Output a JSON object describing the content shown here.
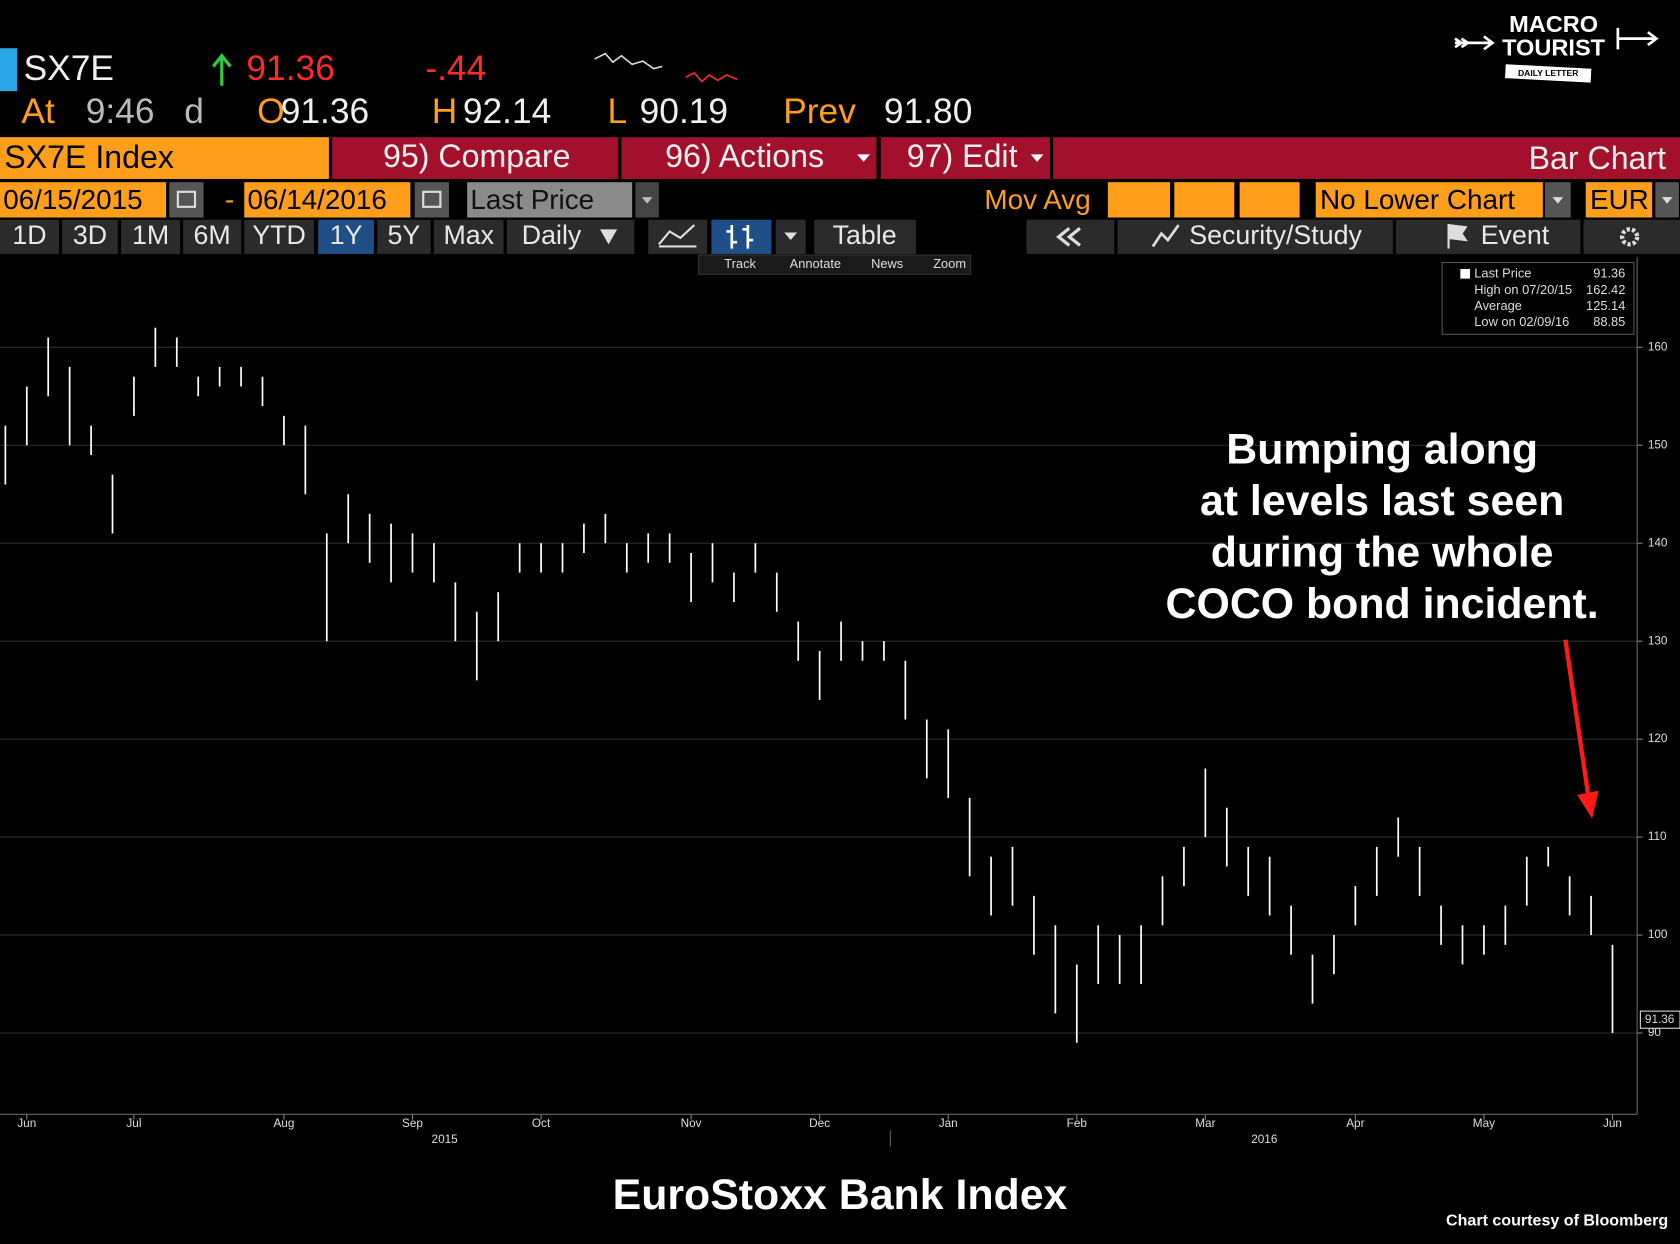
{
  "header": {
    "ticker": "SX7E",
    "last": "91.36",
    "change": "-.44",
    "at_label": "At",
    "time": "9:46",
    "time_flag": "d",
    "open_label": "O",
    "open": "91.36",
    "high_label": "H",
    "high": "92.14",
    "low_label": "L",
    "low": "90.19",
    "prev_label": "Prev",
    "prev": "91.80"
  },
  "logo": {
    "line1": "MACRO",
    "line2": "TOURIST",
    "line3": "DAILY LETTER"
  },
  "menu": {
    "security": "SX7E Index",
    "compare": "95) Compare",
    "actions": "96) Actions",
    "edit": "97) Edit",
    "view": "Bar Chart"
  },
  "settings": {
    "start": "06/15/2015",
    "dash": "-",
    "end": "06/14/2016",
    "field": "Last Price",
    "mov_avg": "Mov Avg",
    "lower": "No Lower Chart",
    "currency": "EUR"
  },
  "periods": [
    "1D",
    "3D",
    "1M",
    "6M",
    "YTD",
    "1Y",
    "5Y",
    "Max",
    "Daily"
  ],
  "tools": {
    "table": "Table",
    "study": "Security/Study",
    "event": "Event"
  },
  "subtools": [
    "Track",
    "Annotate",
    "News",
    "Zoom"
  ],
  "chart_data": {
    "type": "bar-hl",
    "title": "EuroStoxx Bank Index",
    "source": "Chart courtesy of Bloomberg",
    "annotation": [
      "Bumping along",
      "at levels last seen",
      "during the whole",
      "COCO bond incident."
    ],
    "color": "#ffffff",
    "grid": true,
    "categories": [
      null,
      "Jun",
      null,
      null,
      null,
      null,
      "Jul",
      null,
      null,
      null,
      null,
      null,
      null,
      "Aug",
      null,
      null,
      null,
      null,
      null,
      "Sep",
      null,
      null,
      null,
      null,
      null,
      "Oct",
      null,
      null,
      null,
      null,
      null,
      null,
      "Nov",
      null,
      null,
      null,
      null,
      null,
      "Dec",
      null,
      null,
      null,
      null,
      null,
      "Jan",
      null,
      null,
      null,
      null,
      null,
      "Feb",
      null,
      null,
      null,
      null,
      null,
      "Mar",
      null,
      null,
      null,
      null,
      null,
      null,
      "Apr",
      null,
      null,
      null,
      null,
      null,
      "May",
      null,
      null,
      null,
      null,
      null,
      "Jun"
    ],
    "years": [
      "2015",
      "2016"
    ],
    "high": [
      152,
      156,
      161,
      158,
      152,
      147,
      157,
      162,
      161,
      157,
      158,
      158,
      157,
      153,
      152,
      141,
      145,
      143,
      142,
      141,
      140,
      136,
      133,
      135,
      140,
      140,
      140,
      142,
      143,
      140,
      141,
      141,
      139,
      140,
      137,
      140,
      137,
      132,
      129,
      132,
      130,
      130,
      128,
      122,
      121,
      114,
      108,
      109,
      104,
      101,
      97,
      101,
      100,
      101,
      106,
      109,
      117,
      113,
      109,
      108,
      103,
      98,
      100,
      105,
      109,
      112,
      109,
      103,
      101,
      101,
      103,
      108,
      109,
      106,
      104,
      99
    ],
    "low": [
      146,
      150,
      155,
      150,
      149,
      141,
      153,
      158,
      158,
      155,
      156,
      156,
      154,
      150,
      145,
      130,
      140,
      138,
      136,
      137,
      136,
      130,
      126,
      130,
      137,
      137,
      137,
      139,
      140,
      137,
      138,
      138,
      134,
      136,
      134,
      137,
      133,
      128,
      124,
      128,
      128,
      128,
      122,
      116,
      114,
      106,
      102,
      103,
      98,
      92,
      89,
      95,
      95,
      95,
      101,
      105,
      110,
      107,
      104,
      102,
      98,
      93,
      96,
      101,
      104,
      108,
      104,
      99,
      97,
      98,
      99,
      103,
      107,
      102,
      100,
      90
    ],
    "ylim": [
      81.7,
      169.2
    ],
    "yticks": [
      90,
      100,
      110,
      120,
      130,
      140,
      150,
      160
    ],
    "last_value": 91.36,
    "stats": [
      {
        "label": "Last Price",
        "value": 91.36
      },
      {
        "label": "High on 07/20/15",
        "value": 162.42
      },
      {
        "label": "Average",
        "value": 125.14
      },
      {
        "label": "Low on 02/09/16",
        "value": 88.85
      }
    ]
  }
}
